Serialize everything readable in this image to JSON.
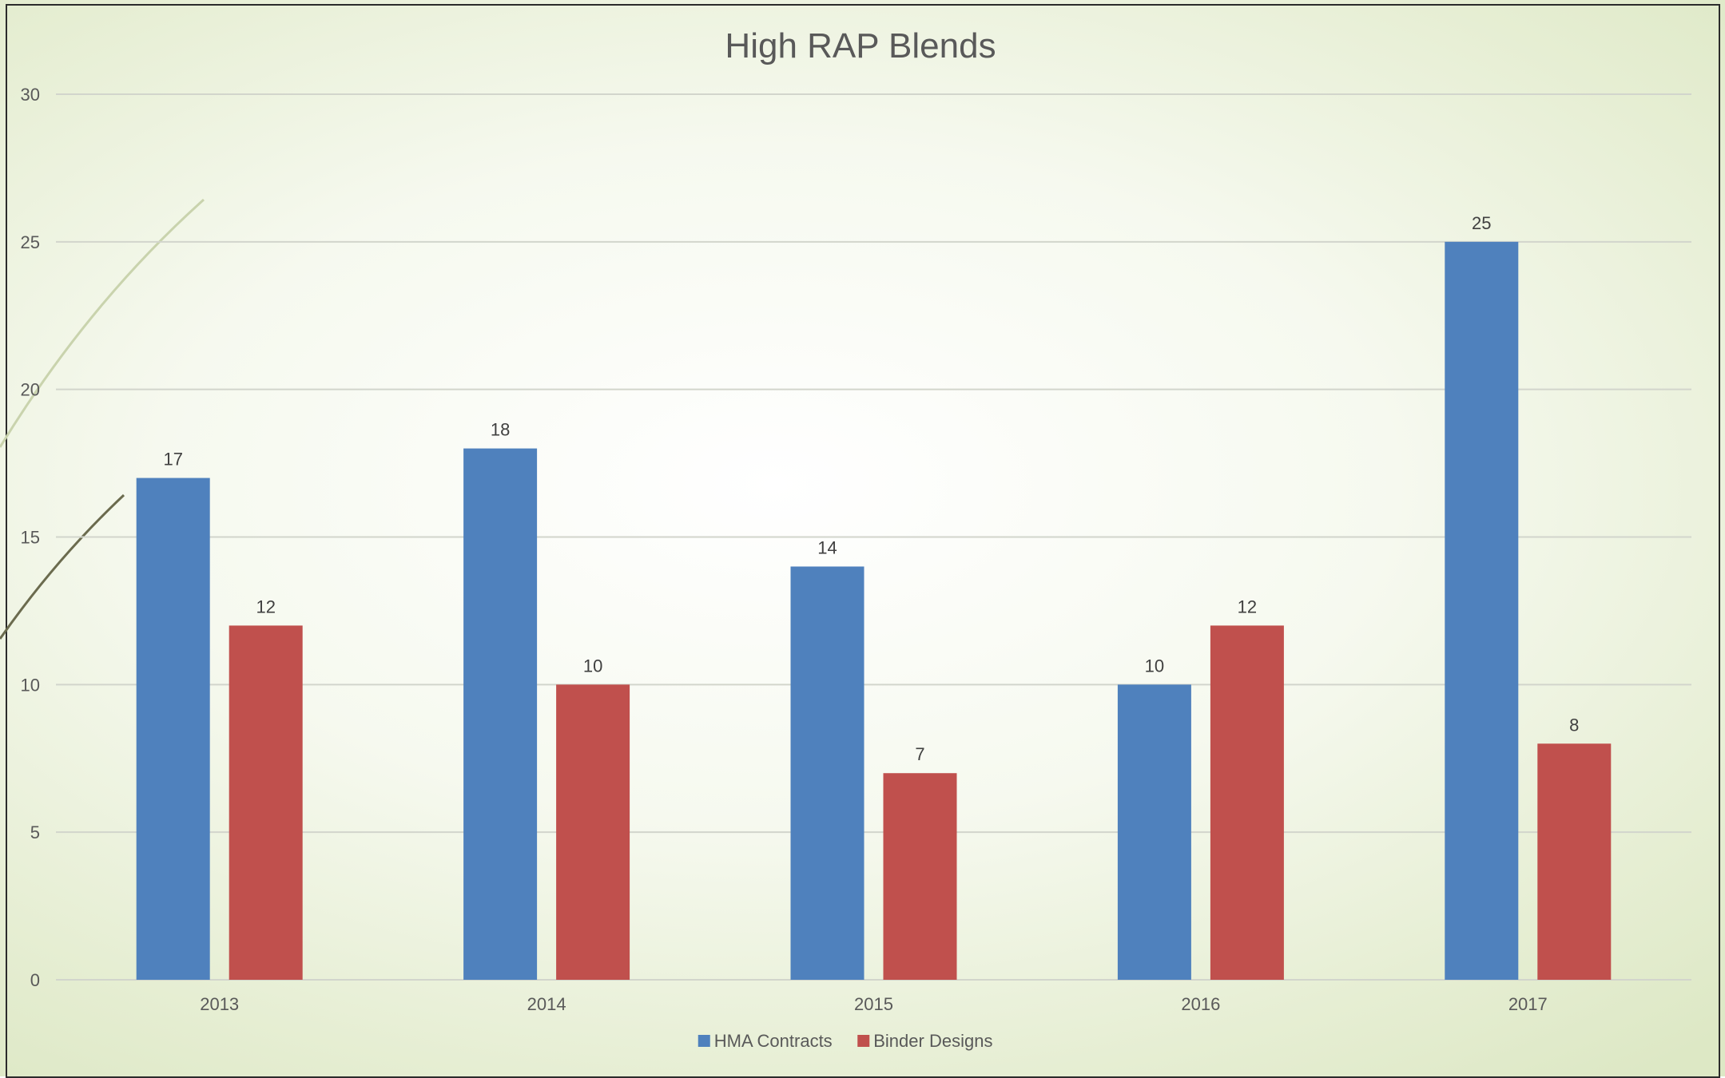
{
  "chart_data": {
    "type": "bar",
    "title": "High RAP Blends",
    "xlabel": "",
    "ylabel": "",
    "categories": [
      "2013",
      "2014",
      "2015",
      "2016",
      "2017"
    ],
    "series": [
      {
        "name": "HMA Contracts",
        "values": [
          17,
          18,
          14,
          10,
          25
        ],
        "color": "#4f81bd"
      },
      {
        "name": "Binder Designs",
        "values": [
          12,
          10,
          7,
          12,
          8
        ],
        "color": "#c0504d"
      }
    ],
    "ylim": [
      0,
      30
    ],
    "yticks": [
      0,
      5,
      10,
      15,
      20,
      25,
      30
    ],
    "grid": true,
    "legend_position": "bottom",
    "data_labels": true
  }
}
